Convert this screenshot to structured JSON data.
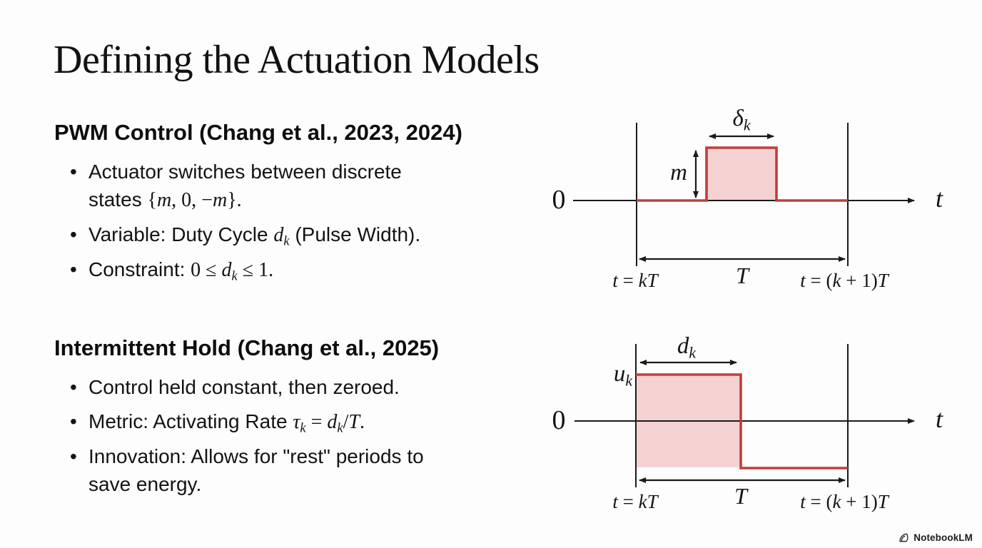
{
  "slide": {
    "title": "Defining the Actuation Models",
    "sections": [
      {
        "heading": "PWM Control (Chang et al., 2023, 2024)",
        "bullets": [
          "Actuator switches between discrete<br>states <span class='mt'>{<i>m</i>, 0, −<i>m</i>}.</span>",
          "Variable: Duty Cycle <span class='mt'><i>d</i><sub><i>k</i></sub></span> (Pulse Width).",
          "Constraint: <span class='mt'>0 ≤ <i>d</i><sub><i>k</i></sub> ≤ 1.</span>"
        ]
      },
      {
        "heading": "Intermittent Hold (Chang et al., 2025)",
        "bullets": [
          "Control held constant, then zeroed.",
          "Metric: Activating Rate <span class='mt'><i>τ</i><sub><i>k</i></sub> = <i>d</i><sub><i>k</i></sub>/<i>T</i>.</span>",
          "Innovation: Allows for \"rest\" periods to<br>save energy."
        ]
      }
    ]
  },
  "diagrams": {
    "pwm": {
      "zero_label": "0",
      "time_axis_label": "<i>t</i>",
      "pulse_width_label": "<i>δ</i><sub><i>k</i></sub>",
      "amplitude_label": "<i>m</i>",
      "period_label": "<i>T</i>",
      "interval_start_label": "<i>t</i> = <i>kT</i>",
      "interval_end_label": "<i>t</i> = (<i>k</i> + 1)<i>T</i>"
    },
    "hold": {
      "zero_label": "0",
      "time_axis_label": "<i>t</i>",
      "hold_width_label": "<i>d</i><sub><i>k</i></sub>",
      "amplitude_label": "<i>u</i><sub><i>k</i></sub>",
      "period_label": "<i>T</i>",
      "interval_start_label": "<i>t</i> = <i>kT</i>",
      "interval_end_label": "<i>t</i> = (<i>k</i> + 1)<i>T</i>"
    }
  },
  "footer": {
    "brand": "NotebookLM"
  },
  "colors": {
    "waveform_stroke": "#c43c3c",
    "waveform_fill": "#f5d2d2",
    "text": "#141414",
    "background": "#fdfdfd"
  }
}
